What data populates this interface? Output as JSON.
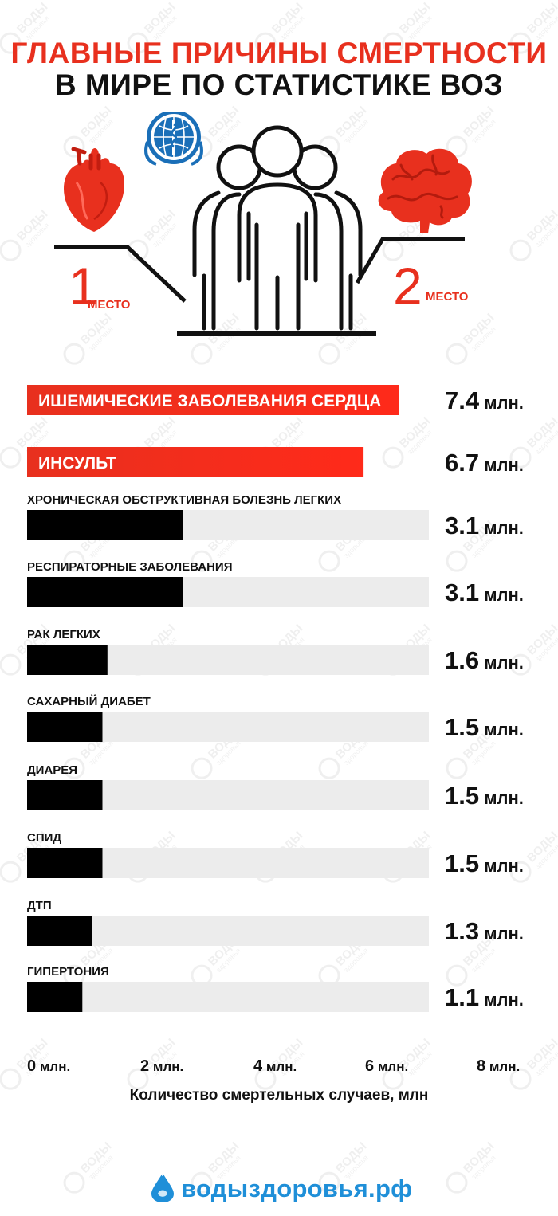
{
  "header": {
    "title_line1": "ГЛАВНЫЕ ПРИЧИНЫ СМЕРТНОСТИ",
    "title_line2": "В МИРЕ ПО СТАТИСТИКЕ ВОЗ"
  },
  "hero": {
    "first_place_number": "1",
    "first_place_word": "МЕСТО",
    "second_place_number": "2",
    "second_place_word": "МЕСТО",
    "icons": [
      "heart-icon",
      "who-emblem-icon",
      "people-group-icon",
      "brain-icon"
    ]
  },
  "watermark": {
    "text_top": "ВОДЫ",
    "text_bottom": "здоровья"
  },
  "colors": {
    "accent_red": "#e8301e",
    "bar_black": "#000000",
    "track_gray": "#ececec",
    "site_blue": "#1f8fd8"
  },
  "chart_data": {
    "type": "bar",
    "orientation": "horizontal",
    "categories": [
      "ИШЕМИЧЕСКИЕ ЗАБОЛЕВАНИЯ СЕРДЦА",
      "ИНСУЛЬТ",
      "ХРОНИЧЕСКАЯ ОБСТРУКТИВНАЯ БОЛЕЗНЬ ЛЕГКИХ",
      "РЕСПИРАТОРНЫЕ ЗАБОЛЕВАНИЯ",
      "РАК ЛЕГКИХ",
      "САХАРНЫЙ ДИАБЕТ",
      "ДИАРЕЯ",
      "СПИД",
      "ДТП",
      "ГИПЕРТОНИЯ"
    ],
    "values": [
      7.4,
      6.7,
      3.1,
      3.1,
      1.6,
      1.5,
      1.5,
      1.5,
      1.3,
      1.1
    ],
    "value_labels": [
      "7.4 млн.",
      "6.7 млн.",
      "3.1 млн.",
      "3.1 млн.",
      "1.6 млн.",
      "1.5 млн.",
      "1.5 млн.",
      "1.5 млн.",
      "1.3 млн.",
      "1.1 млн."
    ],
    "highlighted": [
      true,
      true,
      false,
      false,
      false,
      false,
      false,
      false,
      false,
      false
    ],
    "xlim": [
      0,
      8
    ],
    "x_ticks": [
      0,
      2,
      4,
      6,
      8
    ],
    "x_tick_labels": [
      "0 млн.",
      "2 млн.",
      "4 млн.",
      "6 млн.",
      "8 млн."
    ],
    "xlabel": "Количество смертельных случаев, млн",
    "grid": false,
    "legend": "none"
  },
  "footer": {
    "site": "водыздоровья.рф"
  }
}
